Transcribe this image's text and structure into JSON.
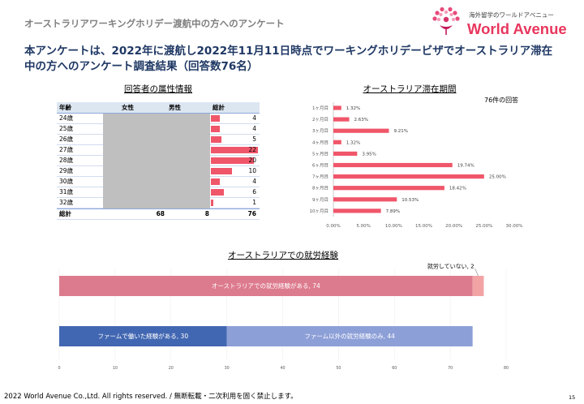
{
  "header": {
    "subtitle": "オーストラリアワーキングホリデー渡航中の方へのアンケート",
    "title_line1": "本アンケートは、2022年に渡航し2022年11月11日時点でワーキングホリデービザでオーストラリア滞在",
    "title_line2": "中の方へのアンケート調査結果（回答数76名）"
  },
  "logo": {
    "tagline": "海外留学のワールドアベニュー",
    "name": "World Avenue"
  },
  "colors": {
    "title": "#1f3864",
    "subtitle": "#7f7f7f",
    "brand": "#e8365d"
  },
  "chart_data": [
    {
      "type": "table",
      "title": "回答者の属性情報",
      "columns": [
        "年齢",
        "女性",
        "男性",
        "総計"
      ],
      "rows": [
        {
          "age": "24歳",
          "total": 4
        },
        {
          "age": "25歳",
          "total": 4
        },
        {
          "age": "26歳",
          "total": 5
        },
        {
          "age": "27歳",
          "total": 22
        },
        {
          "age": "28歳",
          "total": 20
        },
        {
          "age": "29歳",
          "total": 10
        },
        {
          "age": "30歳",
          "total": 4
        },
        {
          "age": "31歳",
          "total": 6
        },
        {
          "age": "32歳",
          "total": 1
        }
      ],
      "total_row": {
        "label": "総計",
        "female": 68,
        "male": 8,
        "total": 76
      },
      "bar_color": "#f0566a"
    },
    {
      "type": "bar",
      "orientation": "horizontal",
      "title": "オーストラリア滞在期間",
      "note": "76件の回答",
      "categories": [
        "1ヶ月目",
        "2ヶ月目",
        "3ヶ月目",
        "4ヶ月目",
        "5ヶ月目",
        "6ヶ月目",
        "7ヶ月目",
        "8ヶ月目",
        "9ヶ月目",
        "10ヶ月目"
      ],
      "values": [
        1.32,
        2.63,
        9.21,
        1.32,
        3.95,
        19.74,
        25.0,
        18.42,
        10.53,
        7.89
      ],
      "value_labels": [
        "1.32%",
        "2.63%",
        "9.21%",
        "1.32%",
        "3.95%",
        "19.74%",
        "25.00%",
        "18.42%",
        "10.53%",
        "7.89%"
      ],
      "xlim": [
        0,
        30
      ],
      "xticks": [
        0,
        5,
        10,
        15,
        20,
        25,
        30
      ],
      "xtick_labels": [
        "0.00%",
        "5.00%",
        "10.00%",
        "15.00%",
        "20.00%",
        "25.00%",
        "30.00%"
      ],
      "color": "#f0566a"
    },
    {
      "type": "bar",
      "orientation": "horizontal",
      "stacked": true,
      "title": "オーストラリアでの就労経験",
      "xlim": [
        0,
        80
      ],
      "xticks": [
        0,
        10,
        20,
        30,
        40,
        50,
        60,
        70,
        80
      ],
      "bars": [
        {
          "segments": [
            {
              "label": "オーストラリアでの就労経験がある, 74",
              "value": 74,
              "color": "#dd7b8e"
            },
            {
              "label": "就労していない, 2",
              "value": 2,
              "color": "#f2a3a4"
            }
          ]
        },
        {
          "segments": [
            {
              "label": "ファームで働いた経験がある, 30",
              "value": 30,
              "color": "#4267b2"
            },
            {
              "label": "ファーム以外の就労経験のみ, 44",
              "value": 44,
              "color": "#8d9fd7"
            }
          ]
        }
      ]
    }
  ],
  "footer": {
    "copyright": "2022 World Avenue Co.,Ltd. All rights reserved. / 無断転載・二次利用を固く禁止します。",
    "page_number": "15"
  }
}
